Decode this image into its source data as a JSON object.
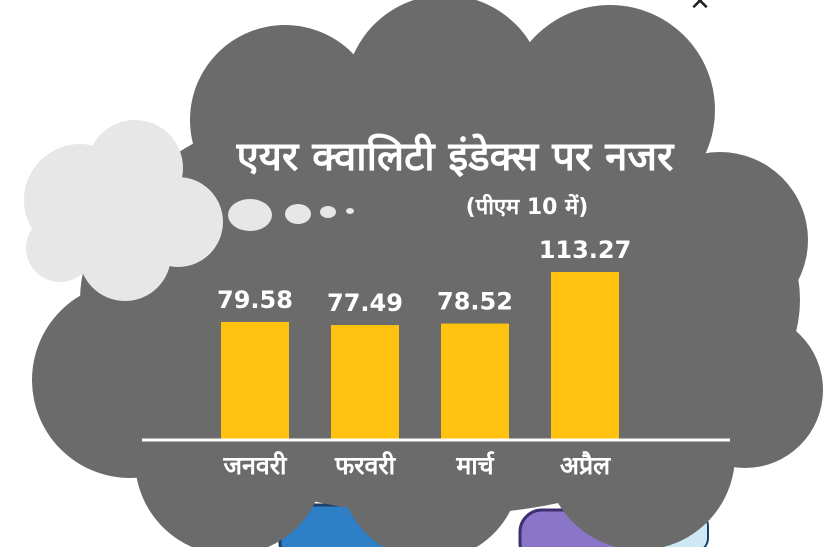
{
  "chart_data": {
    "type": "bar",
    "title": "एयर क्वालिटी इंडेक्स पर नजर",
    "subtitle": "(पीएम 10 में)",
    "categories": [
      "जनवरी",
      "फरवरी",
      "मार्च",
      "अप्रैल"
    ],
    "values": [
      79.58,
      77.49,
      78.52,
      113.27
    ],
    "value_labels": [
      "79.58",
      "77.49",
      "78.52",
      "113.27"
    ],
    "ylim": [
      0,
      113.27
    ],
    "grid": false,
    "legend": "none"
  },
  "colors": {
    "background": "#ffffff",
    "smog_cloud": "#6b6b6b",
    "light_cloud": "#e7e7e7",
    "bar": "#ffc20e",
    "text": "#ffffff",
    "baseline": "#ffffff",
    "car_blue": "#2f7fc6"
  }
}
